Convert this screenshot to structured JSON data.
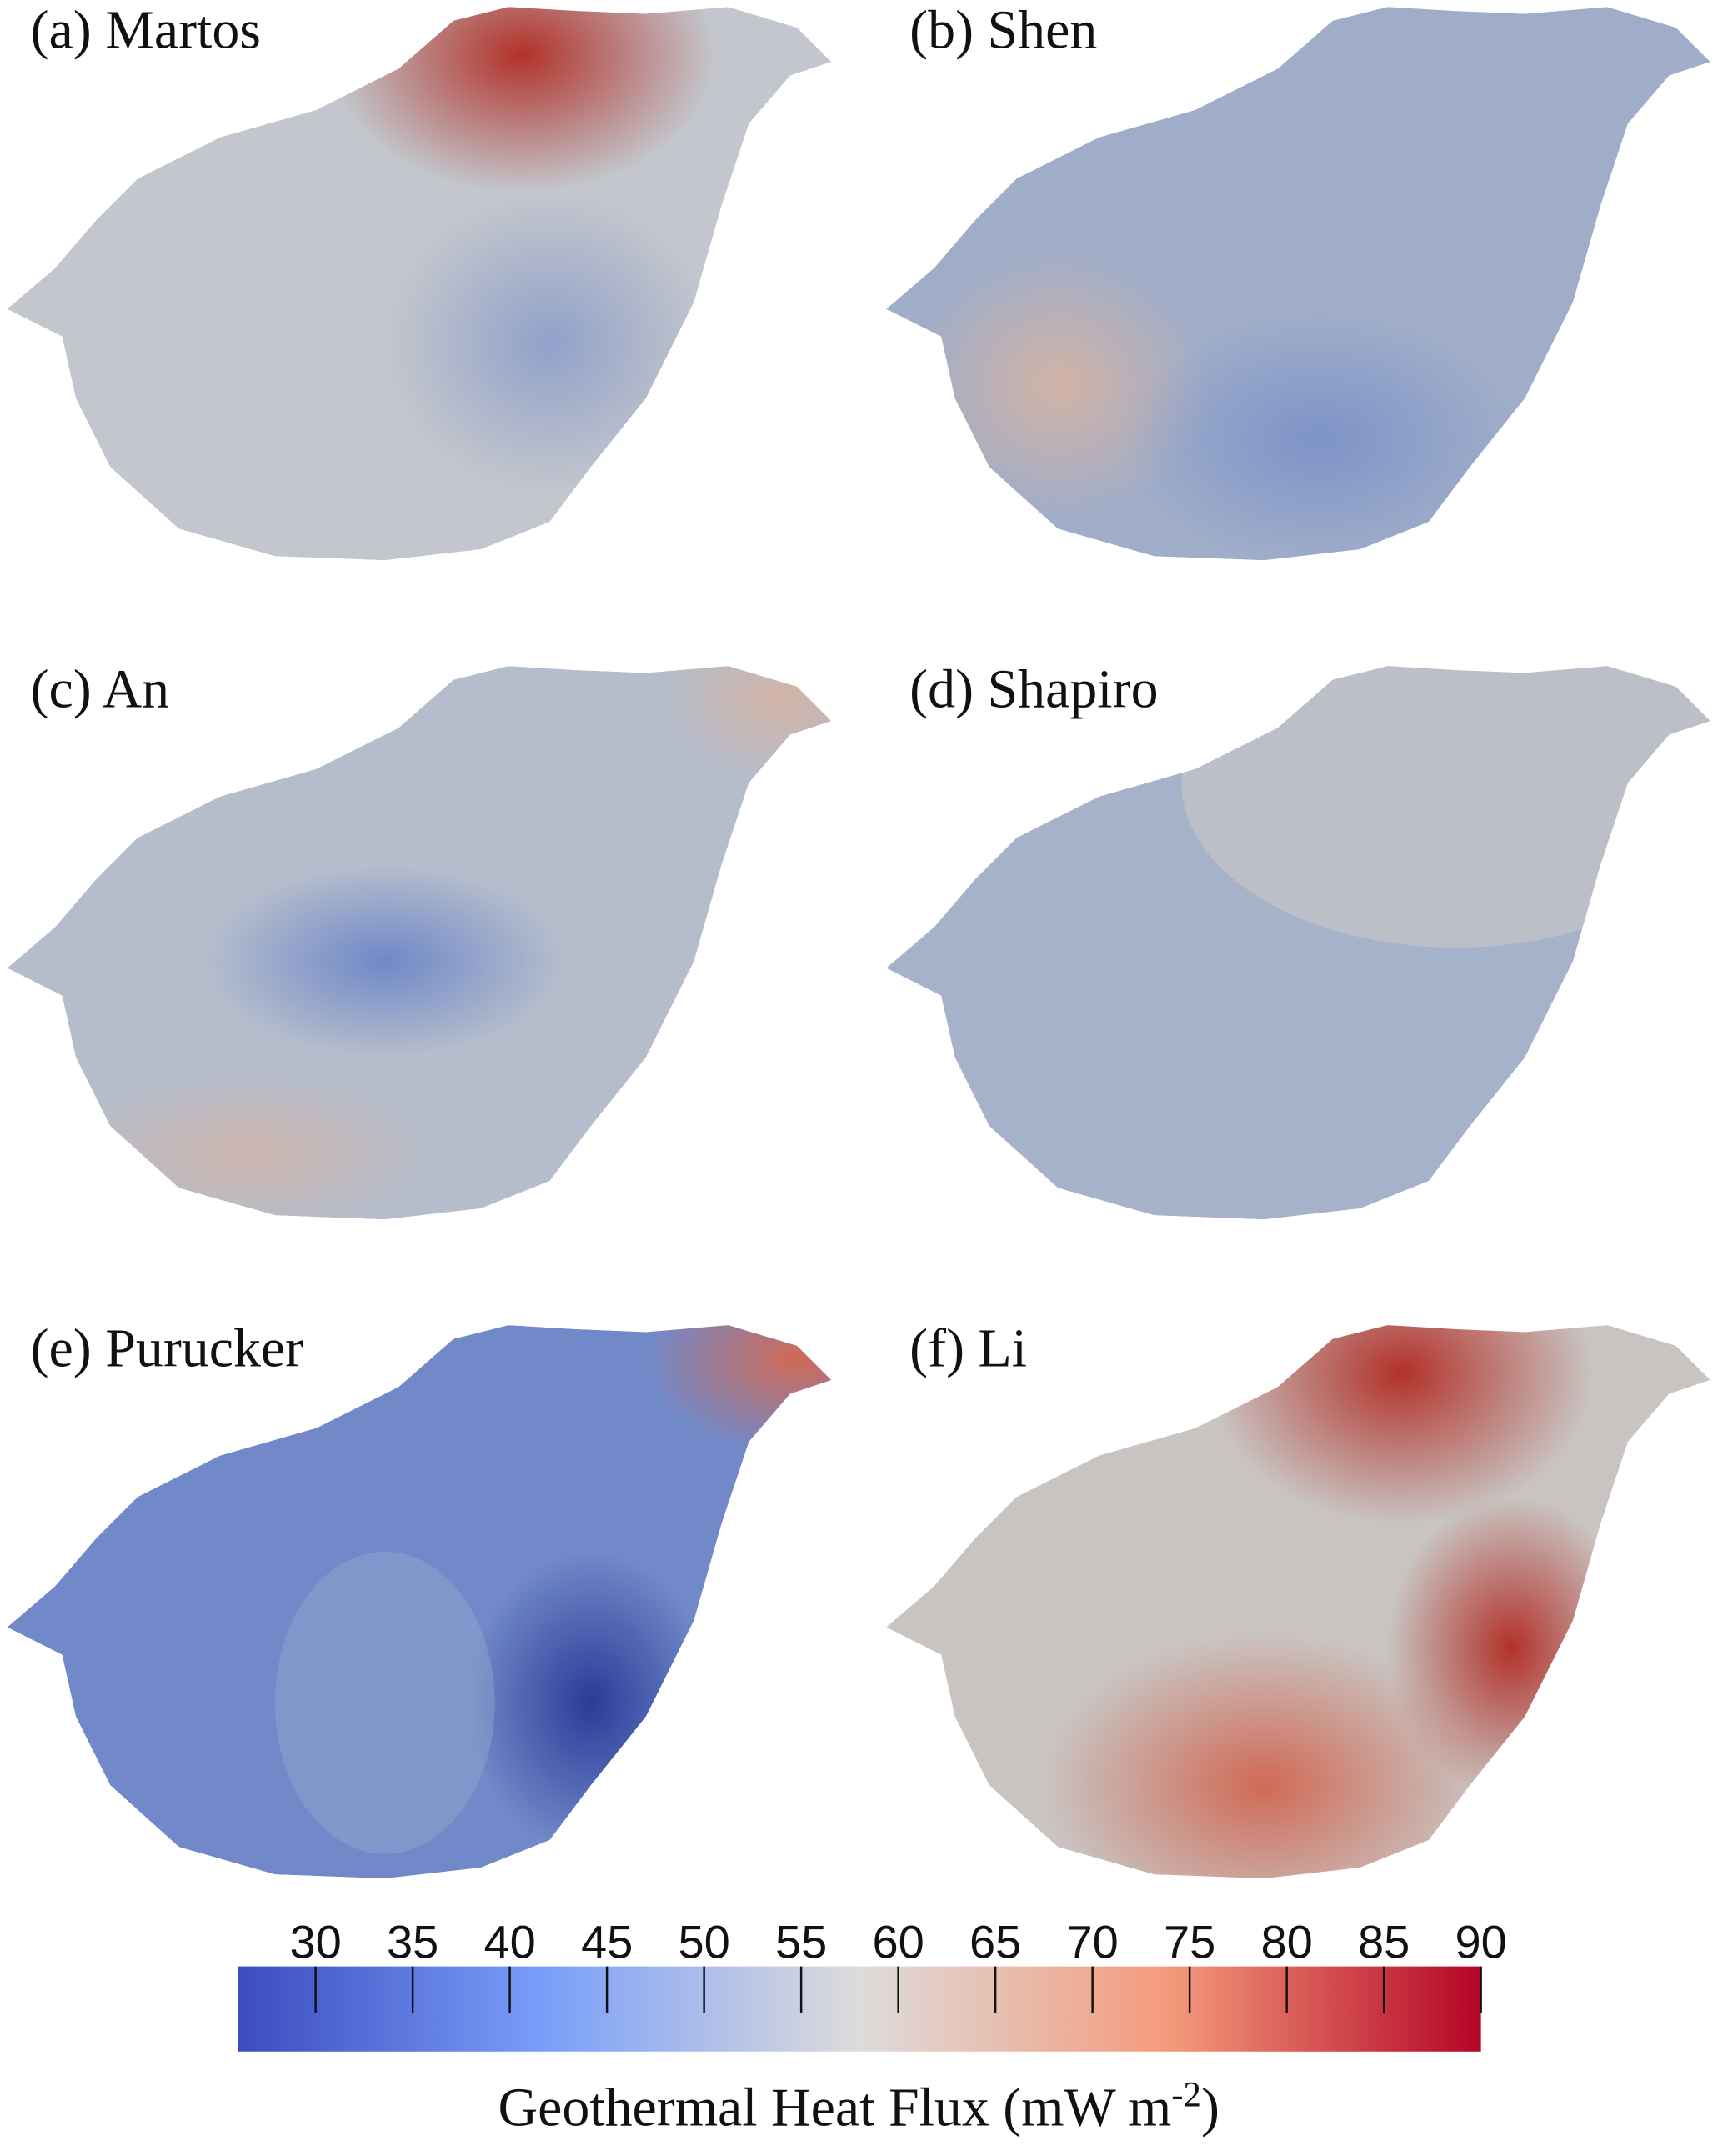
{
  "panels": [
    {
      "title": "(a) Martos"
    },
    {
      "title": "(b) Shen"
    },
    {
      "title": "(c) An"
    },
    {
      "title": "(d) Shapiro"
    },
    {
      "title": "(e) Purucker"
    },
    {
      "title": "(f) Li"
    }
  ],
  "colorbar": {
    "lim": [
      26,
      90
    ],
    "ticks": [
      30,
      35,
      40,
      45,
      50,
      55,
      60,
      65,
      70,
      75,
      80,
      85,
      90
    ],
    "label": {
      "text": "Geothermal Heat Flux (mW m",
      "sup": "-2",
      "end": ")"
    }
  }
}
